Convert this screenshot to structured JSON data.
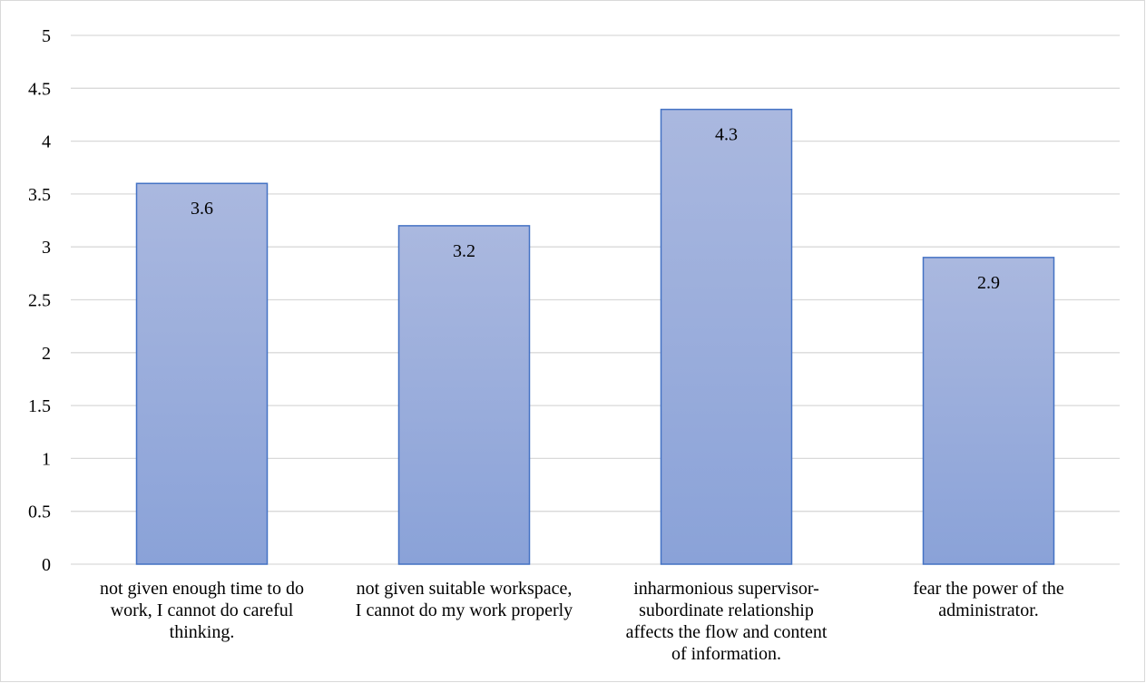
{
  "chart_data": {
    "type": "bar",
    "categories": [
      [
        "not given enough time to do",
        "work, I cannot do careful",
        "thinking."
      ],
      [
        "not given suitable workspace,",
        "I cannot do my work properly"
      ],
      [
        "inharmonious supervisor-",
        "subordinate relationship",
        "affects the flow and content",
        "of information."
      ],
      [
        "fear the power of the",
        "administrator."
      ]
    ],
    "values": [
      3.6,
      3.2,
      4.3,
      2.9
    ],
    "data_labels": [
      "3.6",
      "3.2",
      "4.3",
      "2.9"
    ],
    "title": "",
    "xlabel": "",
    "ylabel": "",
    "ylim": [
      0,
      5
    ],
    "yticks": [
      "0",
      "0.5",
      "1",
      "1.5",
      "2",
      "2.5",
      "3",
      "3.5",
      "4",
      "4.5",
      "5"
    ],
    "grid": true,
    "legend": "none",
    "colors": {
      "bar_top": "#aab8df",
      "bar_bottom": "#8aa2d8",
      "bar_border": "#4472c4",
      "grid": "#d9d9d9"
    }
  }
}
